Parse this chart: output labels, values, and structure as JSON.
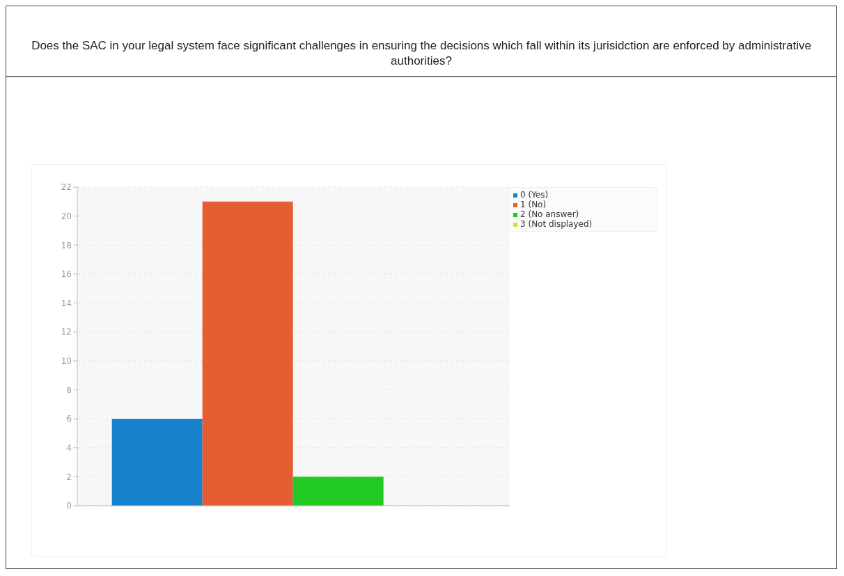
{
  "chart_data": {
    "type": "bar",
    "title": "Does the SAC in your legal system face significant challenges in ensuring the decisions which fall within its jurisidction are enforced by administrative authorities?",
    "categories": [
      null
    ],
    "series": [
      {
        "name": "0 (Yes)",
        "color": "#1781cc",
        "values": [
          6
        ]
      },
      {
        "name": "1 (No)",
        "color": "#e55e33",
        "values": [
          21
        ]
      },
      {
        "name": "2 (No answer)",
        "color": "#23c923",
        "values": [
          2
        ]
      },
      {
        "name": "3 (Not displayed)",
        "color": "#d5e02a",
        "values": [
          0
        ]
      }
    ],
    "ylim": [
      0,
      22
    ],
    "yticks": [
      0,
      2,
      4,
      6,
      8,
      10,
      12,
      14,
      16,
      18,
      20,
      22
    ],
    "grid": "y",
    "legend": "top right"
  }
}
